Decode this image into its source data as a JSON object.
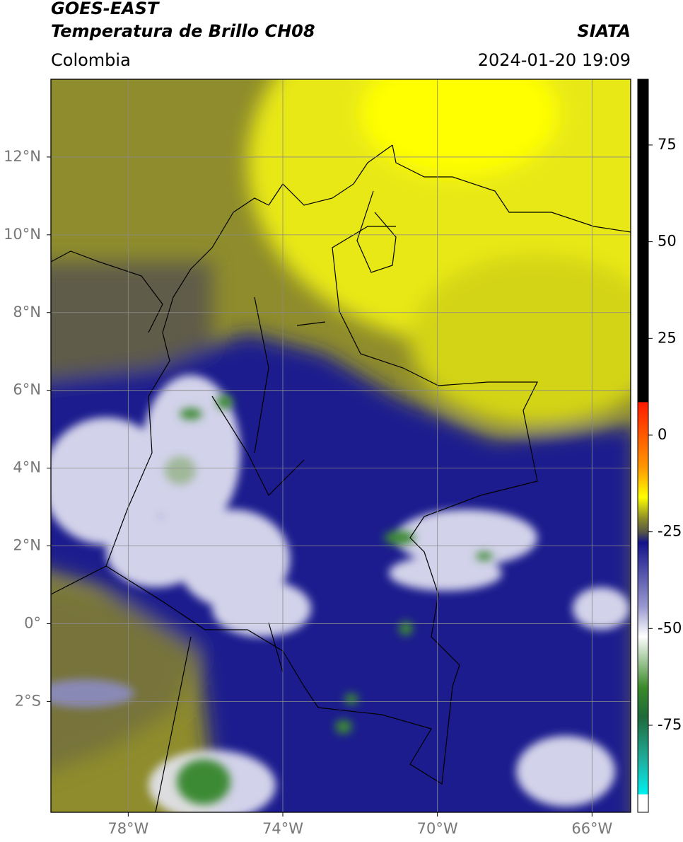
{
  "header": {
    "title": "GOES-EAST",
    "subtitle": "Temperatura de Brillo CH08",
    "region": "Colombia",
    "source": "SIATA",
    "datetime": "2024-01-20 19:09"
  },
  "map": {
    "xlim": [
      -80,
      -65
    ],
    "ylim": [
      -4.85,
      14
    ],
    "xticks": [
      {
        "value": -78,
        "label": "78°W"
      },
      {
        "value": -74,
        "label": "74°W"
      },
      {
        "value": -70,
        "label": "70°W"
      },
      {
        "value": -66,
        "label": "66°W"
      }
    ],
    "yticks": [
      {
        "value": 12,
        "label": "12°N"
      },
      {
        "value": 10,
        "label": "10°N"
      },
      {
        "value": 8,
        "label": "8°N"
      },
      {
        "value": 6,
        "label": "6°N"
      },
      {
        "value": 4,
        "label": "4°N"
      },
      {
        "value": 2,
        "label": "2°N"
      },
      {
        "value": 0,
        "label": "0°"
      },
      {
        "value": -2,
        "label": "2°S"
      }
    ],
    "grid": true
  },
  "colorbar": {
    "lim": [
      -97.5,
      92
    ],
    "ticks": [
      75,
      50,
      25,
      0,
      -25,
      -50,
      -75
    ]
  }
}
